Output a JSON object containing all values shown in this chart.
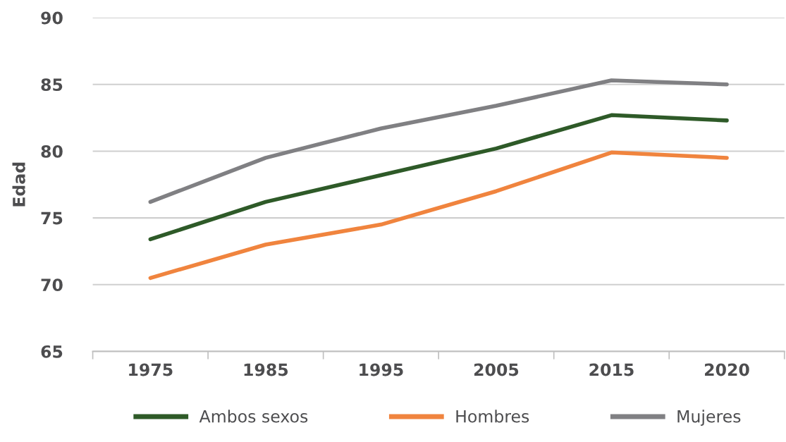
{
  "chart_data": {
    "type": "line",
    "ylabel": "Edad",
    "categories": [
      "1975",
      "1985",
      "1995",
      "2005",
      "2015",
      "2020"
    ],
    "series": [
      {
        "name": "Ambos sexos",
        "color": "#2e5a28",
        "values": [
          73.4,
          76.2,
          78.2,
          80.2,
          82.7,
          82.3
        ]
      },
      {
        "name": "Hombres",
        "color": "#f0843e",
        "values": [
          70.5,
          73.0,
          74.5,
          77.0,
          79.9,
          79.5
        ]
      },
      {
        "name": "Mujeres",
        "color": "#808083",
        "values": [
          76.2,
          79.5,
          81.7,
          83.4,
          85.3,
          85.0
        ]
      }
    ],
    "ylim": [
      65,
      90
    ],
    "yticks": [
      65,
      70,
      75,
      80,
      85,
      90
    ],
    "grid": "y",
    "legend": "bottom",
    "marker": "none",
    "line_style": "solid"
  }
}
